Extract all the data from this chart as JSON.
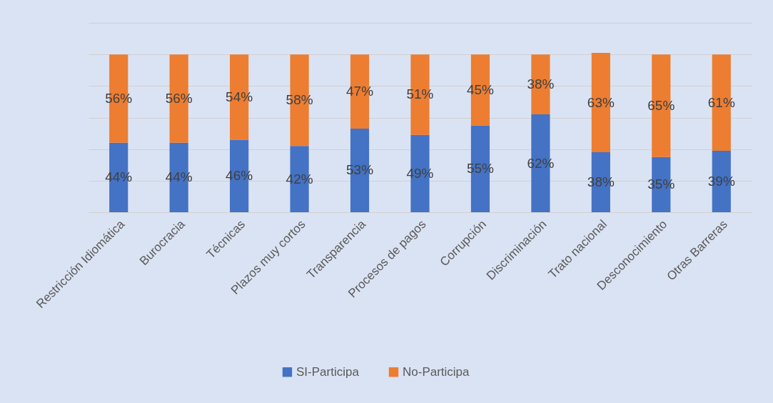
{
  "chart_data": {
    "type": "bar",
    "stacked": true,
    "categories": [
      "Restricción Idiomática",
      "Burocracia",
      "Técnicas",
      "Plazos muy cortos",
      "Transparencia",
      "Procesos de pagos",
      "Corrupción",
      "Discriminación",
      "Trato nacional",
      "Desconocimiento",
      "Otras Barreras"
    ],
    "series": [
      {
        "name": "SI-Participa",
        "color": "#4472c4",
        "values": [
          44,
          44,
          46,
          42,
          53,
          49,
          55,
          62,
          38,
          35,
          39
        ],
        "value_labels": [
          "44%",
          "44%",
          "46%",
          "42%",
          "53%",
          "49%",
          "55%",
          "62%",
          "38%",
          "35%",
          "39%"
        ]
      },
      {
        "name": "No-Participa",
        "color": "#ed7d31",
        "values": [
          56,
          56,
          54,
          58,
          47,
          51,
          45,
          38,
          63,
          65,
          61
        ],
        "value_labels": [
          "56%",
          "56%",
          "54%",
          "58%",
          "47%",
          "51%",
          "45%",
          "38%",
          "63%",
          "65%",
          "61%"
        ]
      }
    ],
    "ylim": [
      0,
      120
    ],
    "yticks": [
      {
        "value": 0,
        "label": null
      },
      {
        "value": 20,
        "label": null
      },
      {
        "value": 40,
        "label": null
      },
      {
        "value": 60,
        "label": null
      },
      {
        "value": 80,
        "label": null
      },
      {
        "value": 100,
        "label": null
      },
      {
        "value": 120,
        "label": null
      }
    ],
    "tick_labels": "x",
    "grid": "y",
    "legend": "bottom"
  }
}
